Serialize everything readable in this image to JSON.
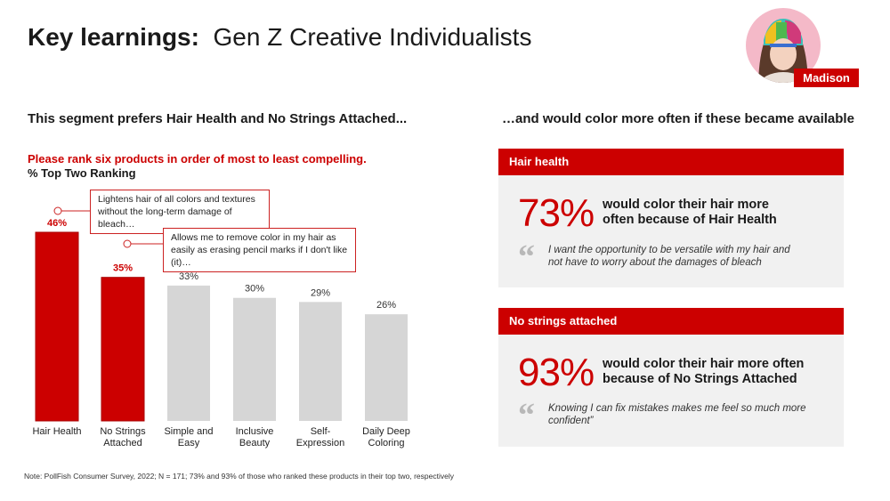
{
  "header": {
    "title_bold": "Key learnings:",
    "title_rest": "Gen Z Creative Individualists",
    "persona_name": "Madison"
  },
  "left": {
    "heading": "This segment prefers Hair Health and No Strings Attached...",
    "question": "Please rank six products in order of most to least compelling.",
    "metric": "% Top Two Ranking",
    "callouts": [
      "Lightens hair of all colors and textures without the long-term damage of bleach…",
      "Allows me to remove color in my hair as easily as erasing pencil marks if I don't like (it)…"
    ]
  },
  "right": {
    "heading": "…and would color more often if these became available",
    "cards": [
      {
        "label": "Hair health",
        "stat": "73%",
        "statement": "would color their hair more often because of Hair Health",
        "quote": "I want the opportunity to be versatile with my hair and not have to worry about the damages of bleach"
      },
      {
        "label": "No strings attached",
        "stat": "93%",
        "statement": "would color their hair more often because of No Strings Attached",
        "quote": "Knowing I can fix mistakes makes me feel so much more confident”"
      }
    ]
  },
  "footnote": "Note: PollFish Consumer Survey, 2022; N = 171; 73% and 93% of those who ranked these products in their top two, respectively",
  "colors": {
    "accent": "#cc0000",
    "bar_grey": "#d6d6d6",
    "card_bg": "#f1f1f1"
  },
  "chart_data": {
    "type": "bar",
    "title": "% Top Two Ranking",
    "categories": [
      [
        "Hair Health"
      ],
      [
        "No Strings",
        "Attached"
      ],
      [
        "Simple and",
        "Easy"
      ],
      [
        "Inclusive",
        "Beauty"
      ],
      [
        "Self-",
        "Expression"
      ],
      [
        "Daily Deep",
        "Coloring"
      ]
    ],
    "values": [
      46,
      35,
      33,
      30,
      29,
      26
    ],
    "value_labels": [
      "46%",
      "35%",
      "33%",
      "30%",
      "29%",
      "26%"
    ],
    "highlighted": [
      true,
      true,
      false,
      false,
      false,
      false
    ],
    "ylim": [
      0,
      46
    ],
    "xlabel": "",
    "ylabel": ""
  }
}
